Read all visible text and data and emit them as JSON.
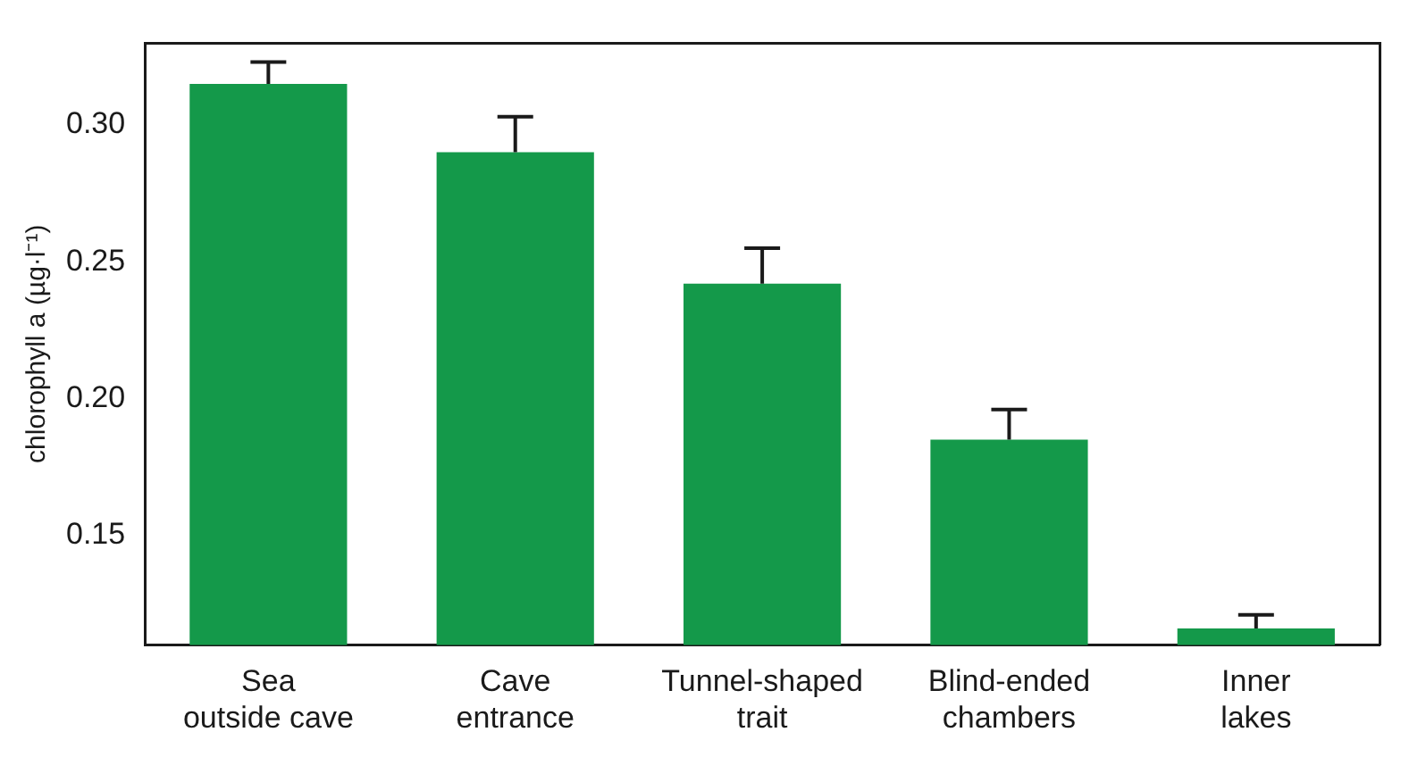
{
  "chart_data": {
    "type": "bar",
    "ylabel": "chlorophyll a (µg·l⁻¹)",
    "categories": [
      "Sea\noutside cave",
      "Cave\nentrance",
      "Tunnel-shaped\ntrait",
      "Blind-ended\nchambers",
      "Inner\nlakes"
    ],
    "values": [
      0.315,
      0.29,
      0.242,
      0.185,
      0.116
    ],
    "errors": [
      0.008,
      0.013,
      0.013,
      0.011,
      0.005
    ],
    "color": "#14994a",
    "ylim": [
      0.11,
      0.33
    ],
    "yticks": [
      0.15,
      {
        "value": 0.2,
        "label": "0.20"
      },
      0.25,
      {
        "value": 0.3,
        "label": "0.30"
      }
    ],
    "grid": false
  }
}
